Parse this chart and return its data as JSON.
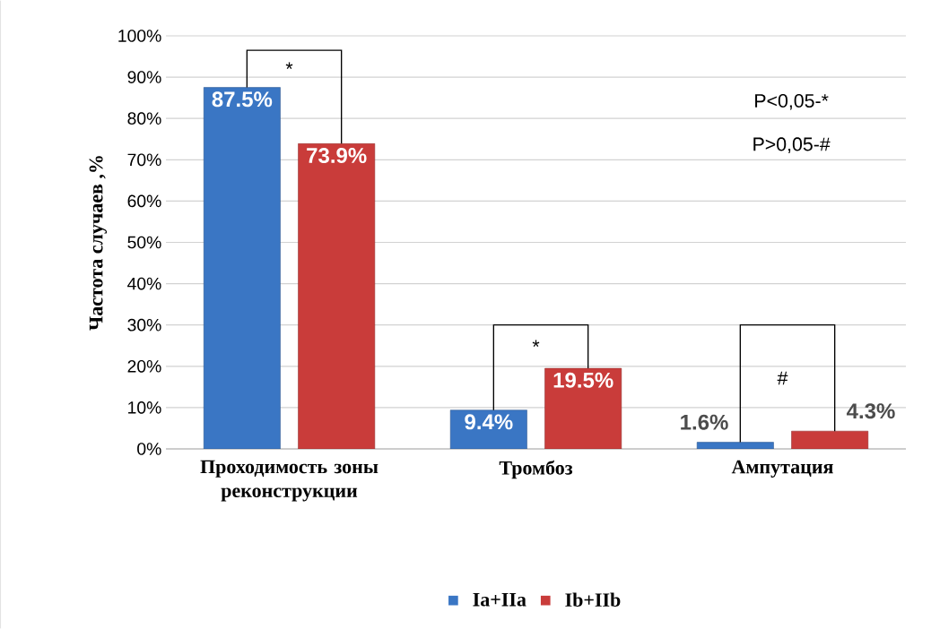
{
  "chart_data": {
    "type": "bar",
    "ylabel": "Частота случаев ,%",
    "categories": [
      "Проходимость зоны реконструкции",
      "Тромбоз",
      "Ампутация"
    ],
    "series": [
      {
        "name": "Ia+IIa",
        "color": "#3a76c4",
        "values": [
          87.5,
          9.4,
          1.6
        ],
        "value_labels": [
          "87.5%",
          "9.4%",
          "1.6%"
        ]
      },
      {
        "name": "Ib+IIb",
        "color": "#c93c3a",
        "values": [
          73.9,
          19.5,
          4.3
        ],
        "value_labels": [
          "73.9%",
          "19.5%",
          "4.3%"
        ]
      }
    ],
    "ylim": [
      0,
      100
    ],
    "yticks": [
      {
        "value": 0,
        "label": "0%"
      },
      {
        "value": 10,
        "label": "10%"
      },
      {
        "value": 20,
        "label": "20%"
      },
      {
        "value": 30,
        "label": "30%"
      },
      {
        "value": 40,
        "label": "40%"
      },
      {
        "value": 50,
        "label": "50%"
      },
      {
        "value": 60,
        "label": "60%"
      },
      {
        "value": 70,
        "label": "70%"
      },
      {
        "value": 80,
        "label": "80%"
      },
      {
        "value": 90,
        "label": "90%"
      },
      {
        "value": 100,
        "label": "100%"
      }
    ],
    "annotations": [
      "*",
      "*",
      "#",
      "P<0,05-*",
      "P>0,05-#"
    ],
    "grid": "y",
    "legend": "bottom"
  }
}
